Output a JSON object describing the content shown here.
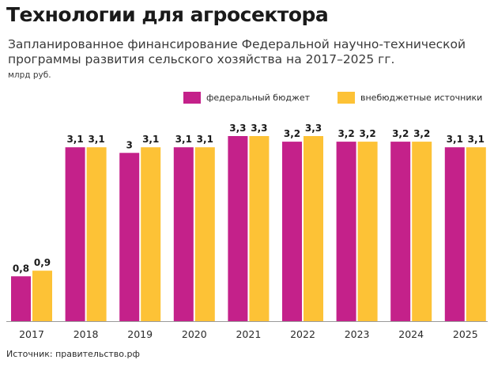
{
  "header": {
    "title": "Технологии для агросектора",
    "subtitle": "Запланированное финансирование Федеральной научно-технической программы развития сельского хозяйства на 2017–2025 гг.",
    "unit": "млрд руб."
  },
  "footer": {
    "source": "Источник: правительство.рф"
  },
  "chart_data": {
    "type": "bar",
    "categories": [
      "2017",
      "2018",
      "2019",
      "2020",
      "2021",
      "2022",
      "2023",
      "2024",
      "2025"
    ],
    "series": [
      {
        "name": "федеральный бюджет",
        "color": "#c4218a",
        "values": [
          0.8,
          3.1,
          3,
          3.1,
          3.3,
          3.2,
          3.2,
          3.2,
          3.1
        ],
        "labels": [
          "0,8",
          "3,1",
          "3",
          "3,1",
          "3,3",
          "3,2",
          "3,2",
          "3,2",
          "3,1"
        ]
      },
      {
        "name": "внебюджетные источники",
        "color": "#fdc236",
        "values": [
          0.9,
          3.1,
          3.1,
          3.1,
          3.3,
          3.3,
          3.2,
          3.2,
          3.1
        ],
        "labels": [
          "0,9",
          "3,1",
          "3,1",
          "3,1",
          "3,3",
          "3,3",
          "3,2",
          "3,2",
          "3,1"
        ]
      }
    ],
    "title": "Технологии для агросектора",
    "ylabel": "млрд руб.",
    "ylim": [
      0,
      3.3
    ],
    "legend_position": "top-right",
    "grid": false
  }
}
